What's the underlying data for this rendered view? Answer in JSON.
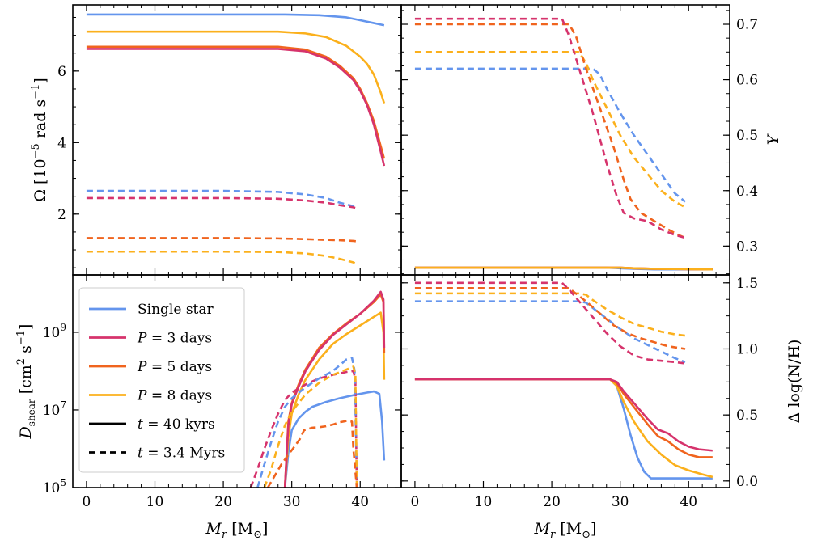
{
  "colors": {
    "single": "#6495ED",
    "p3": "#D6336C",
    "p5": "#F0641E",
    "p8": "#FBB01C"
  },
  "chart_data": [
    {
      "id": "omega",
      "type": "line",
      "ylabel": "Ω [10⁻⁵ rad s⁻¹]",
      "xlim": [
        -2,
        46
      ],
      "ylim": [
        0.3,
        7.85
      ],
      "yticks": [
        2,
        4,
        6
      ],
      "ytick_labels": [
        "2",
        "4",
        "6"
      ],
      "series": [
        {
          "key": "single",
          "style": "solid",
          "x": [
            0,
            20,
            29,
            34,
            38,
            40,
            42,
            43.5
          ],
          "y": [
            7.58,
            7.58,
            7.58,
            7.56,
            7.5,
            7.42,
            7.34,
            7.28
          ]
        },
        {
          "key": "p8",
          "style": "solid",
          "x": [
            0,
            20,
            28,
            32,
            35,
            38,
            40,
            41,
            42,
            43,
            43.5
          ],
          "y": [
            7.1,
            7.1,
            7.1,
            7.05,
            6.95,
            6.7,
            6.4,
            6.2,
            5.9,
            5.4,
            5.1
          ]
        },
        {
          "key": "p5",
          "style": "solid",
          "x": [
            0,
            20,
            28,
            32,
            35,
            37,
            39,
            40,
            41,
            42,
            43,
            43.5
          ],
          "y": [
            6.68,
            6.68,
            6.68,
            6.6,
            6.4,
            6.15,
            5.8,
            5.5,
            5.1,
            4.6,
            3.9,
            3.55
          ]
        },
        {
          "key": "p3",
          "style": "solid",
          "x": [
            0,
            20,
            28,
            32,
            35,
            37,
            39,
            40,
            41,
            42,
            43,
            43.5
          ],
          "y": [
            6.62,
            6.62,
            6.62,
            6.55,
            6.35,
            6.1,
            5.75,
            5.45,
            5.05,
            4.5,
            3.75,
            3.35
          ]
        },
        {
          "key": "single",
          "style": "dashed",
          "x": [
            0,
            20,
            28,
            32,
            35,
            37,
            39,
            39.5
          ],
          "y": [
            2.65,
            2.65,
            2.62,
            2.55,
            2.45,
            2.32,
            2.22,
            2.18
          ]
        },
        {
          "key": "p3",
          "style": "dashed",
          "x": [
            0,
            20,
            28,
            32,
            35,
            37,
            39,
            39.5
          ],
          "y": [
            2.45,
            2.45,
            2.43,
            2.38,
            2.32,
            2.25,
            2.19,
            2.16
          ]
        },
        {
          "key": "p5",
          "style": "dashed",
          "x": [
            0,
            20,
            28,
            32,
            35,
            37,
            39,
            39.5
          ],
          "y": [
            1.33,
            1.33,
            1.32,
            1.3,
            1.28,
            1.27,
            1.25,
            1.24
          ]
        },
        {
          "key": "p8",
          "style": "dashed",
          "x": [
            0,
            20,
            28,
            32,
            35,
            37,
            39,
            39.5
          ],
          "y": [
            0.95,
            0.95,
            0.94,
            0.9,
            0.83,
            0.75,
            0.65,
            0.6
          ]
        }
      ]
    },
    {
      "id": "helium",
      "type": "line",
      "ylabel": "Y",
      "xlim": [
        -2,
        46
      ],
      "ylim": [
        0.248,
        0.735
      ],
      "yticks": [
        0.3,
        0.4,
        0.5,
        0.6,
        0.7
      ],
      "ytick_labels": [
        "0.3",
        "0.4",
        "0.5",
        "0.6",
        "0.7"
      ],
      "series": [
        {
          "key": "single",
          "style": "solid",
          "x": [
            0,
            28,
            30,
            32,
            35,
            43.5
          ],
          "y": [
            0.261,
            0.261,
            0.26,
            0.259,
            0.258,
            0.258
          ]
        },
        {
          "key": "p3",
          "style": "solid",
          "x": [
            0,
            28,
            30,
            32,
            35,
            43.5
          ],
          "y": [
            0.261,
            0.261,
            0.261,
            0.26,
            0.259,
            0.258
          ]
        },
        {
          "key": "p5",
          "style": "solid",
          "x": [
            0,
            28,
            30,
            32,
            35,
            43.5
          ],
          "y": [
            0.261,
            0.261,
            0.261,
            0.26,
            0.259,
            0.258
          ]
        },
        {
          "key": "p8",
          "style": "solid",
          "x": [
            0,
            28,
            30,
            32,
            35,
            43.5
          ],
          "y": [
            0.261,
            0.261,
            0.261,
            0.26,
            0.259,
            0.258
          ]
        },
        {
          "key": "single",
          "style": "dashed",
          "x": [
            0,
            26,
            27,
            28,
            30,
            32,
            34,
            36,
            38,
            39.5
          ],
          "y": [
            0.62,
            0.62,
            0.61,
            0.585,
            0.54,
            0.5,
            0.465,
            0.43,
            0.395,
            0.38
          ]
        },
        {
          "key": "p8",
          "style": "dashed",
          "x": [
            0,
            24,
            25,
            26,
            28,
            30,
            32,
            34,
            36,
            38,
            39.5
          ],
          "y": [
            0.65,
            0.65,
            0.63,
            0.6,
            0.55,
            0.5,
            0.46,
            0.43,
            0.4,
            0.38,
            0.37
          ]
        },
        {
          "key": "p5",
          "style": "dashed",
          "x": [
            0,
            22.5,
            23.5,
            25,
            27,
            29,
            30.5,
            31.5,
            33,
            35,
            37,
            38.5,
            39.5
          ],
          "y": [
            0.7,
            0.7,
            0.68,
            0.62,
            0.55,
            0.48,
            0.42,
            0.385,
            0.36,
            0.345,
            0.33,
            0.32,
            0.315
          ]
        },
        {
          "key": "p3",
          "style": "dashed",
          "x": [
            0,
            21.5,
            22.5,
            24,
            26,
            28,
            29.5,
            30.5,
            32,
            34,
            36,
            38,
            39.5
          ],
          "y": [
            0.71,
            0.71,
            0.68,
            0.62,
            0.54,
            0.45,
            0.39,
            0.36,
            0.35,
            0.345,
            0.33,
            0.32,
            0.315
          ]
        }
      ]
    },
    {
      "id": "dshear",
      "type": "line",
      "ylabel": "D_shear [cm² s⁻¹]",
      "yscale": "log",
      "xlim": [
        -2,
        46
      ],
      "ylim": [
        100000,
        30000000000
      ],
      "yticks": [
        100000,
        10000000,
        1000000000
      ],
      "ytick_labels": [
        "10^5",
        "10^7",
        "10^9"
      ],
      "series": [
        {
          "key": "single",
          "style": "solid",
          "x": [
            29,
            29.5,
            30,
            31,
            32,
            33,
            35,
            37,
            39,
            41,
            42,
            42.8,
            43.2,
            43.5
          ],
          "y": [
            100000,
            800000,
            3000000,
            6000000,
            9000000,
            12000000,
            16000000,
            20000000,
            24000000,
            28000000,
            30000000,
            26000000,
            5000000,
            500000
          ]
        },
        {
          "key": "p8",
          "style": "solid",
          "x": [
            29,
            29.5,
            30,
            31,
            32,
            34,
            36,
            38,
            40,
            42,
            43,
            43.4,
            43.5
          ],
          "y": [
            100000,
            2000000,
            8000000,
            25000000,
            60000000,
            200000000,
            500000000,
            900000000,
            1500000000,
            2500000000,
            3200000000,
            1000000000,
            60000000
          ]
        },
        {
          "key": "p5",
          "style": "solid",
          "x": [
            29,
            29.5,
            30,
            31,
            32,
            34,
            36,
            38,
            40,
            42,
            43,
            43.4,
            43.5
          ],
          "y": [
            100000,
            5000000,
            15000000,
            45000000,
            110000000,
            400000000,
            900000000,
            1700000000,
            3000000000,
            6000000000,
            9500000000,
            6000000000,
            300000000
          ]
        },
        {
          "key": "p3",
          "style": "solid",
          "x": [
            29,
            29.5,
            30,
            31,
            32,
            34,
            36,
            38,
            40,
            42,
            43,
            43.4,
            43.5
          ],
          "y": [
            100000,
            4000000,
            14000000,
            40000000,
            100000000,
            350000000,
            850000000,
            1600000000,
            3000000000,
            6500000000,
            11000000000,
            7000000000,
            400000000
          ]
        },
        {
          "key": "p3",
          "style": "dashed",
          "x": [
            24,
            25,
            26,
            27,
            28,
            29,
            30,
            32,
            34,
            36,
            38,
            39,
            39.3,
            39.5
          ],
          "y": [
            100000,
            300000,
            1000000,
            3000000,
            8000000,
            18000000,
            28000000,
            45000000,
            65000000,
            80000000,
            95000000,
            100000000,
            60000000,
            100000
          ]
        },
        {
          "key": "single",
          "style": "dashed",
          "x": [
            25,
            26,
            27,
            28,
            29,
            30,
            32,
            34,
            36,
            37,
            38,
            38.8,
            39.2,
            39.5
          ],
          "y": [
            100000,
            400000,
            1500000,
            5000000,
            12000000,
            20000000,
            38000000,
            65000000,
            100000000,
            140000000,
            200000000,
            220000000,
            100000000,
            100000
          ]
        },
        {
          "key": "p8",
          "style": "dashed",
          "x": [
            26,
            27,
            28,
            29,
            30,
            32,
            34,
            36,
            38,
            39,
            39.3,
            39.5
          ],
          "y": [
            100000,
            300000,
            1200000,
            4000000,
            9000000,
            25000000,
            50000000,
            80000000,
            110000000,
            130000000,
            80000000,
            100000
          ]
        },
        {
          "key": "p5",
          "style": "dashed",
          "x": [
            26.5,
            27.5,
            28.5,
            29.5,
            30.5,
            31.2,
            31.8,
            33,
            34,
            35,
            36,
            37,
            38,
            38.8,
            39,
            39.5
          ],
          "y": [
            100000,
            200000,
            400000,
            700000,
            1200000,
            1800000,
            3000000,
            3500000,
            3600000,
            3800000,
            4200000,
            4800000,
            5200000,
            5000000,
            1000000,
            100000
          ]
        }
      ]
    },
    {
      "id": "nitrogen",
      "type": "line",
      "ylabel": "Δ log(N/H)",
      "xlim": [
        -2,
        46
      ],
      "ylim": [
        -0.05,
        1.56
      ],
      "yticks": [
        0.0,
        0.5,
        1.0,
        1.5
      ],
      "ytick_labels": [
        "0.0",
        "0.5",
        "1.0",
        "1.5"
      ],
      "series": [
        {
          "key": "single",
          "style": "solid",
          "x": [
            0,
            28.5,
            29.5,
            30.5,
            31.5,
            32.5,
            33.5,
            34.5,
            43.5
          ],
          "y": [
            0.77,
            0.77,
            0.72,
            0.55,
            0.35,
            0.18,
            0.07,
            0.02,
            0.02
          ]
        },
        {
          "key": "p8",
          "style": "solid",
          "x": [
            0,
            28.5,
            29.5,
            30.5,
            32,
            34,
            36,
            38,
            40,
            42,
            43.5
          ],
          "y": [
            0.77,
            0.77,
            0.72,
            0.6,
            0.45,
            0.3,
            0.2,
            0.12,
            0.08,
            0.05,
            0.03
          ]
        },
        {
          "key": "p5",
          "style": "solid",
          "x": [
            0,
            28.5,
            29.5,
            30.5,
            32,
            34,
            35.5,
            37,
            38.5,
            40,
            41.5,
            43.5
          ],
          "y": [
            0.77,
            0.77,
            0.74,
            0.66,
            0.56,
            0.43,
            0.34,
            0.3,
            0.24,
            0.2,
            0.18,
            0.18
          ]
        },
        {
          "key": "p3",
          "style": "solid",
          "x": [
            0,
            28.5,
            29.5,
            30.5,
            32,
            34,
            35.5,
            37,
            38.5,
            40,
            41.5,
            43.5
          ],
          "y": [
            0.77,
            0.77,
            0.75,
            0.68,
            0.59,
            0.47,
            0.39,
            0.36,
            0.3,
            0.26,
            0.24,
            0.23
          ]
        },
        {
          "key": "single",
          "style": "dashed",
          "x": [
            0,
            24,
            25,
            26,
            28,
            30,
            32,
            34,
            36,
            38,
            39.5
          ],
          "y": [
            1.36,
            1.36,
            1.35,
            1.31,
            1.23,
            1.15,
            1.08,
            1.03,
            0.98,
            0.93,
            0.9
          ]
        },
        {
          "key": "p8",
          "style": "dashed",
          "x": [
            0,
            24,
            25,
            26,
            28,
            30,
            32,
            34,
            36,
            38,
            39.5
          ],
          "y": [
            1.42,
            1.42,
            1.41,
            1.37,
            1.3,
            1.24,
            1.19,
            1.16,
            1.13,
            1.11,
            1.1
          ]
        },
        {
          "key": "p5",
          "style": "dashed",
          "x": [
            0,
            22.5,
            23.5,
            25,
            27,
            29,
            31,
            33,
            35,
            37,
            39.5
          ],
          "y": [
            1.46,
            1.46,
            1.42,
            1.36,
            1.27,
            1.18,
            1.12,
            1.08,
            1.05,
            1.02,
            1.0
          ]
        },
        {
          "key": "p3",
          "style": "dashed",
          "x": [
            0,
            21.5,
            22.5,
            24,
            26,
            28,
            30,
            32,
            34,
            36,
            38,
            39.5
          ],
          "y": [
            1.5,
            1.5,
            1.45,
            1.36,
            1.24,
            1.12,
            1.02,
            0.95,
            0.92,
            0.91,
            0.9,
            0.89
          ]
        }
      ]
    }
  ],
  "xaxis": {
    "label": "M_r [M_⊙]",
    "ticks": [
      0,
      10,
      20,
      30,
      40
    ],
    "tick_labels": [
      "0",
      "10",
      "20",
      "30",
      "40"
    ]
  },
  "legend": {
    "placement": "upper-left of lower-left panel",
    "entries": [
      {
        "key": "single",
        "style": "solid",
        "label": "Single star"
      },
      {
        "key": "p3",
        "style": "solid",
        "label": "P = 3 days"
      },
      {
        "key": "p5",
        "style": "solid",
        "label": "P = 5 days"
      },
      {
        "key": "p8",
        "style": "solid",
        "label": "P = 8 days"
      },
      {
        "key": "black",
        "style": "solid",
        "label": "t = 40 kyrs"
      },
      {
        "key": "black",
        "style": "dashed",
        "label": "t = 3.4 Myrs"
      }
    ]
  }
}
